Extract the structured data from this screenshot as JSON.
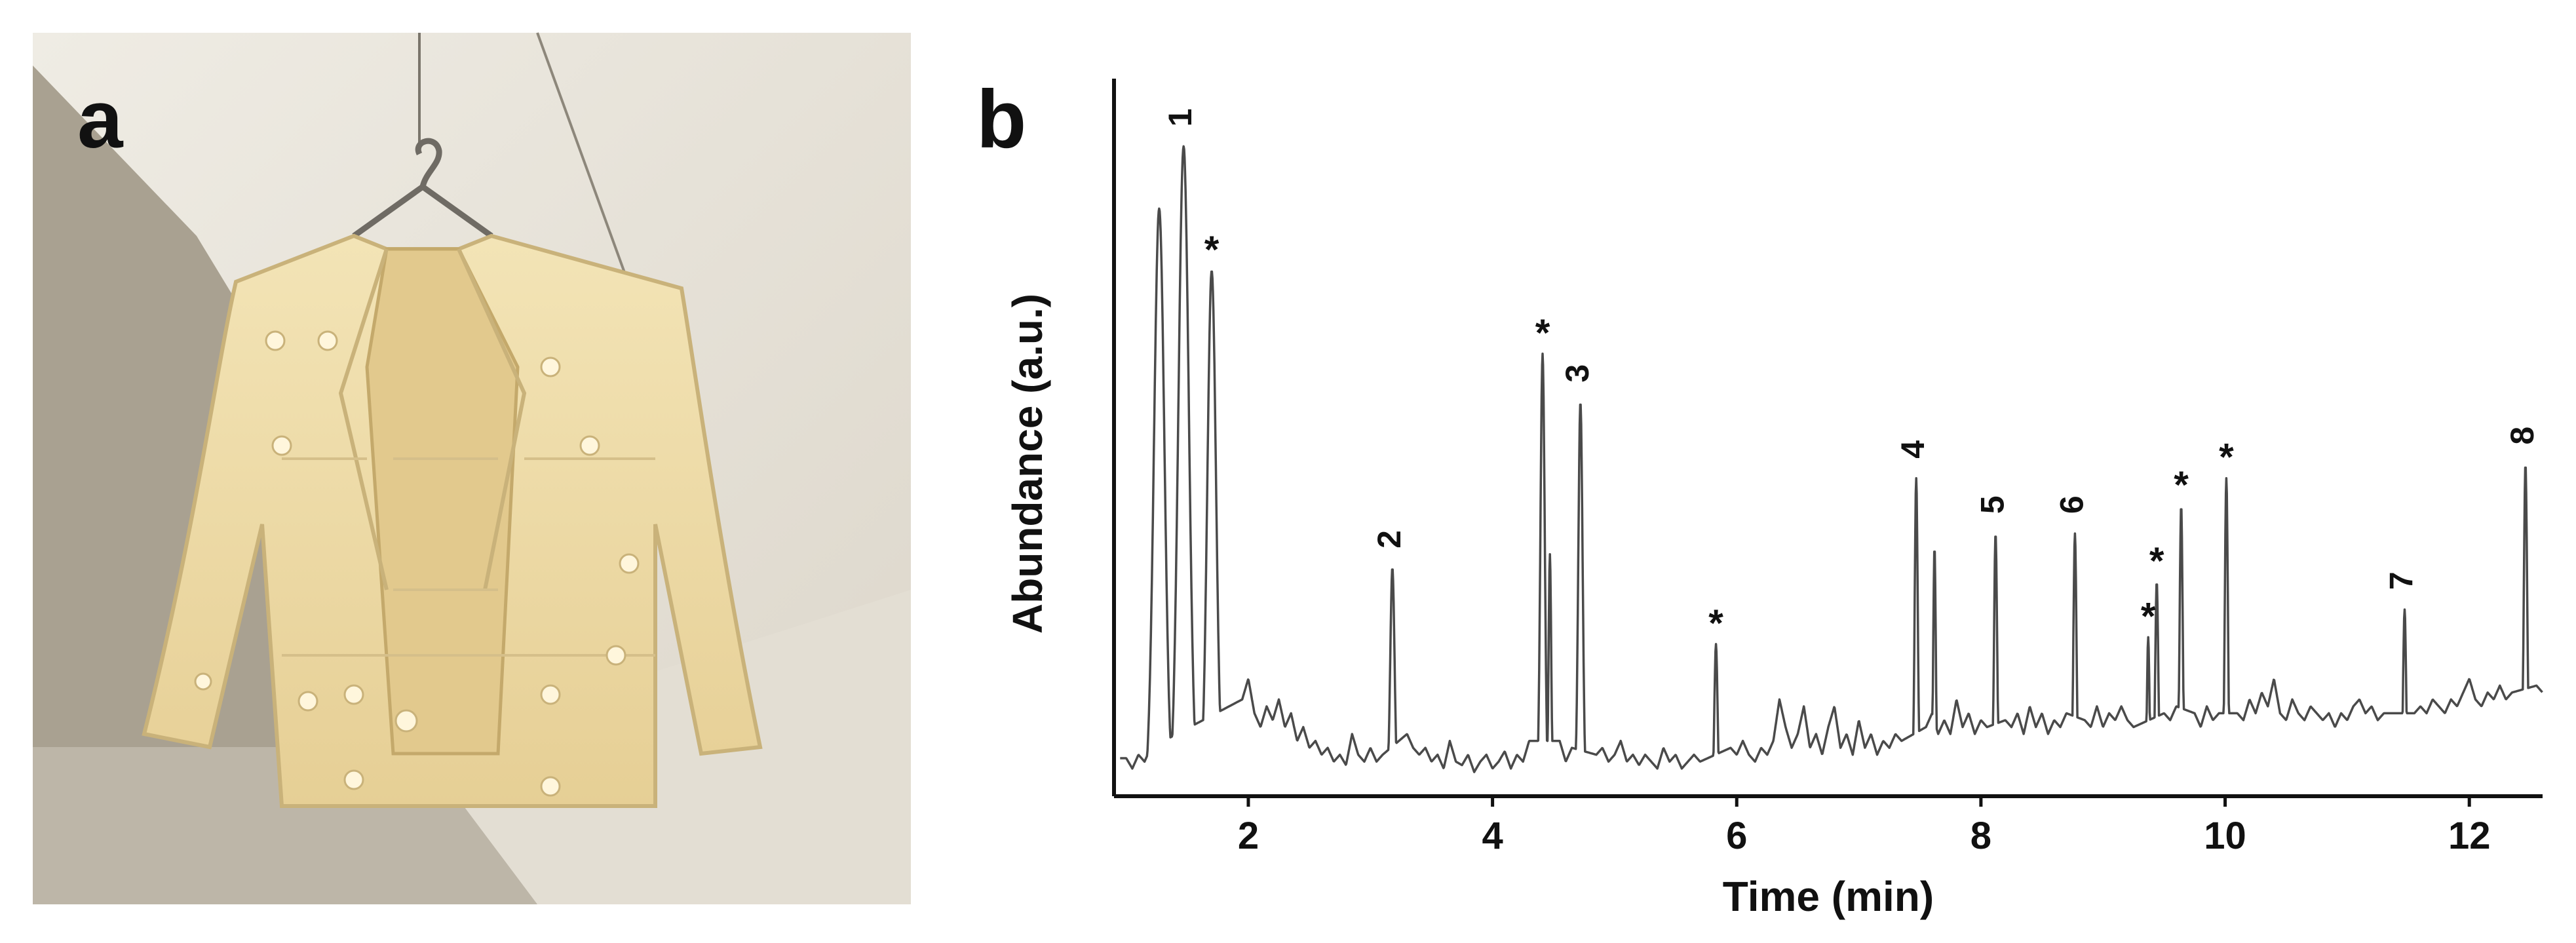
{
  "panels": {
    "a": {
      "letter": "a"
    },
    "b": {
      "letter": "b"
    }
  },
  "colors": {
    "trace": "#4a4a4a",
    "axis": "#111111",
    "wall": "#e7e3d9",
    "floor": "#b3ab9c",
    "jacket": "#ecd9a4"
  },
  "chart_data": {
    "type": "line",
    "title": "",
    "xlabel": "Time (min)",
    "ylabel": "Abundance (a.u.)",
    "xlim": [
      0.9,
      12.6
    ],
    "ylim": [
      0,
      100
    ],
    "xticks": [
      2,
      4,
      6,
      8,
      10,
      12
    ],
    "grid": false,
    "legend": "none",
    "baseline_noise": [
      [
        1.0,
        5.5
      ],
      [
        1.05,
        4
      ],
      [
        1.1,
        6
      ],
      [
        1.15,
        5
      ],
      [
        1.2,
        7
      ],
      [
        1.95,
        14
      ],
      [
        2.0,
        17
      ],
      [
        2.05,
        12
      ],
      [
        2.1,
        10
      ],
      [
        2.15,
        13
      ],
      [
        2.2,
        11
      ],
      [
        2.25,
        14
      ],
      [
        2.3,
        10
      ],
      [
        2.35,
        12
      ],
      [
        2.4,
        8
      ],
      [
        2.45,
        10
      ],
      [
        2.5,
        7
      ],
      [
        2.55,
        8
      ],
      [
        2.6,
        6
      ],
      [
        2.65,
        7
      ],
      [
        2.7,
        5
      ],
      [
        2.75,
        6
      ],
      [
        2.8,
        4.5
      ],
      [
        2.85,
        9
      ],
      [
        2.9,
        6
      ],
      [
        2.95,
        5
      ],
      [
        3.0,
        7
      ],
      [
        3.05,
        5
      ],
      [
        3.1,
        6
      ],
      [
        3.3,
        9
      ],
      [
        3.35,
        7
      ],
      [
        3.4,
        6
      ],
      [
        3.45,
        7
      ],
      [
        3.5,
        5
      ],
      [
        3.55,
        6
      ],
      [
        3.6,
        4
      ],
      [
        3.65,
        8
      ],
      [
        3.7,
        5
      ],
      [
        3.75,
        4.5
      ],
      [
        3.8,
        6
      ],
      [
        3.85,
        3.5
      ],
      [
        3.9,
        5
      ],
      [
        3.95,
        6
      ],
      [
        4.0,
        4
      ],
      [
        4.05,
        5
      ],
      [
        4.1,
        6.5
      ],
      [
        4.15,
        4
      ],
      [
        4.2,
        6
      ],
      [
        4.25,
        5
      ],
      [
        4.3,
        8
      ],
      [
        4.55,
        8
      ],
      [
        4.6,
        5
      ],
      [
        4.65,
        7
      ],
      [
        4.85,
        6
      ],
      [
        4.9,
        7
      ],
      [
        4.95,
        5
      ],
      [
        5.0,
        6
      ],
      [
        5.05,
        8
      ],
      [
        5.1,
        5
      ],
      [
        5.15,
        6
      ],
      [
        5.2,
        4.5
      ],
      [
        5.25,
        6
      ],
      [
        5.3,
        5
      ],
      [
        5.35,
        4
      ],
      [
        5.4,
        7
      ],
      [
        5.45,
        5
      ],
      [
        5.5,
        6
      ],
      [
        5.55,
        4
      ],
      [
        5.6,
        5
      ],
      [
        5.65,
        6
      ],
      [
        5.7,
        5
      ],
      [
        5.95,
        7
      ],
      [
        6.0,
        6
      ],
      [
        6.05,
        8
      ],
      [
        6.1,
        6
      ],
      [
        6.15,
        5
      ],
      [
        6.2,
        7
      ],
      [
        6.25,
        6
      ],
      [
        6.3,
        8
      ],
      [
        6.35,
        14
      ],
      [
        6.4,
        10
      ],
      [
        6.45,
        7
      ],
      [
        6.5,
        9
      ],
      [
        6.55,
        13
      ],
      [
        6.6,
        7
      ],
      [
        6.65,
        9
      ],
      [
        6.7,
        6
      ],
      [
        6.75,
        10
      ],
      [
        6.8,
        13
      ],
      [
        6.85,
        7
      ],
      [
        6.9,
        9
      ],
      [
        6.95,
        6
      ],
      [
        7.0,
        11
      ],
      [
        7.05,
        7
      ],
      [
        7.1,
        9
      ],
      [
        7.15,
        6
      ],
      [
        7.2,
        8
      ],
      [
        7.25,
        7
      ],
      [
        7.3,
        9
      ],
      [
        7.35,
        8
      ],
      [
        7.55,
        10
      ],
      [
        7.6,
        12
      ],
      [
        7.65,
        9
      ],
      [
        7.7,
        11
      ],
      [
        7.75,
        9
      ],
      [
        7.8,
        14
      ],
      [
        7.85,
        10
      ],
      [
        7.9,
        12
      ],
      [
        7.95,
        9
      ],
      [
        8.0,
        11
      ],
      [
        8.05,
        10
      ],
      [
        8.2,
        11
      ],
      [
        8.25,
        10
      ],
      [
        8.3,
        12
      ],
      [
        8.35,
        9
      ],
      [
        8.4,
        13
      ],
      [
        8.45,
        10
      ],
      [
        8.5,
        12
      ],
      [
        8.55,
        9
      ],
      [
        8.6,
        11
      ],
      [
        8.65,
        10
      ],
      [
        8.7,
        12
      ],
      [
        8.85,
        11
      ],
      [
        8.9,
        10
      ],
      [
        8.95,
        13
      ],
      [
        9.0,
        10
      ],
      [
        9.05,
        12
      ],
      [
        9.1,
        11
      ],
      [
        9.15,
        13
      ],
      [
        9.2,
        11
      ],
      [
        9.25,
        10
      ],
      [
        9.5,
        12
      ],
      [
        9.55,
        11
      ],
      [
        9.6,
        13
      ],
      [
        9.75,
        12
      ],
      [
        9.8,
        10
      ],
      [
        9.85,
        13
      ],
      [
        9.9,
        11
      ],
      [
        9.95,
        12
      ],
      [
        10.1,
        12
      ],
      [
        10.15,
        11
      ],
      [
        10.2,
        14
      ],
      [
        10.25,
        12
      ],
      [
        10.3,
        15
      ],
      [
        10.35,
        13
      ],
      [
        10.4,
        17
      ],
      [
        10.45,
        12
      ],
      [
        10.5,
        11
      ],
      [
        10.55,
        14
      ],
      [
        10.6,
        12
      ],
      [
        10.65,
        11
      ],
      [
        10.7,
        13
      ],
      [
        10.75,
        12
      ],
      [
        10.8,
        11
      ],
      [
        10.85,
        12
      ],
      [
        10.9,
        10
      ],
      [
        10.95,
        12
      ],
      [
        11.0,
        11
      ],
      [
        11.05,
        13
      ],
      [
        11.1,
        14
      ],
      [
        11.15,
        12
      ],
      [
        11.2,
        13
      ],
      [
        11.25,
        11
      ],
      [
        11.3,
        12
      ],
      [
        11.55,
        12
      ],
      [
        11.6,
        13
      ],
      [
        11.65,
        12
      ],
      [
        11.7,
        14
      ],
      [
        11.75,
        13
      ],
      [
        11.8,
        12
      ],
      [
        11.85,
        14
      ],
      [
        11.9,
        13
      ],
      [
        11.95,
        15
      ],
      [
        12.0,
        17
      ],
      [
        12.05,
        14
      ],
      [
        12.1,
        13
      ],
      [
        12.15,
        15
      ],
      [
        12.2,
        14
      ],
      [
        12.25,
        16
      ],
      [
        12.3,
        14
      ],
      [
        12.35,
        15
      ],
      [
        12.55,
        16
      ],
      [
        12.6,
        15
      ]
    ],
    "peaks": [
      {
        "label": "1",
        "x": 1.47,
        "y": 94,
        "w": 0.06
      },
      {
        "label": "*",
        "x": 1.7,
        "y": 76,
        "w": 0.05
      },
      {
        "label": "",
        "x": 1.27,
        "y": 85,
        "w": 0.06
      },
      {
        "label": "2",
        "x": 3.18,
        "y": 33,
        "w": 0.025
      },
      {
        "label": "*",
        "x": 4.41,
        "y": 64,
        "w": 0.025
      },
      {
        "label": "",
        "x": 4.47,
        "y": 35,
        "w": 0.015
      },
      {
        "label": "3",
        "x": 4.72,
        "y": 57,
        "w": 0.025
      },
      {
        "label": "*",
        "x": 5.83,
        "y": 22,
        "w": 0.018
      },
      {
        "label": "4",
        "x": 7.47,
        "y": 46,
        "w": 0.018
      },
      {
        "label": "",
        "x": 7.62,
        "y": 36,
        "w": 0.015
      },
      {
        "label": "5",
        "x": 8.12,
        "y": 38,
        "w": 0.018
      },
      {
        "label": "6",
        "x": 8.77,
        "y": 38,
        "w": 0.018
      },
      {
        "label": "*",
        "x": 9.37,
        "y": 23,
        "w": 0.015
      },
      {
        "label": "*",
        "x": 9.44,
        "y": 31,
        "w": 0.018
      },
      {
        "label": "*",
        "x": 9.64,
        "y": 42,
        "w": 0.018
      },
      {
        "label": "*",
        "x": 10.01,
        "y": 46,
        "w": 0.018
      },
      {
        "label": "7",
        "x": 11.47,
        "y": 27,
        "w": 0.018
      },
      {
        "label": "8",
        "x": 12.46,
        "y": 48,
        "w": 0.02
      }
    ]
  }
}
